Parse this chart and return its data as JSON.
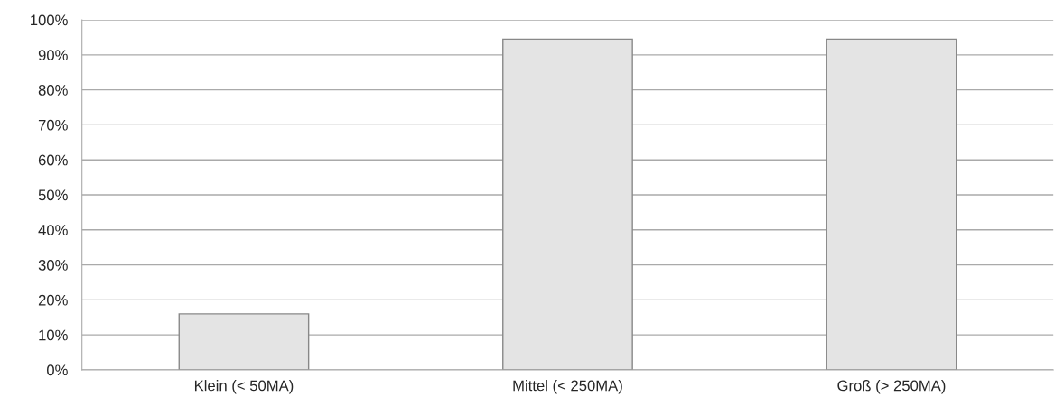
{
  "chart_data": {
    "type": "bar",
    "categories": [
      "Klein (< 50MA)",
      "Mittel (< 250MA)",
      "Groß (> 250MA)"
    ],
    "values": [
      16,
      94.5,
      94.5
    ],
    "color": "#e4e4e4",
    "ylim": [
      0,
      100
    ],
    "yticks": [
      {
        "value": 0,
        "label": "0%"
      },
      {
        "value": 10,
        "label": "10%"
      },
      {
        "value": 20,
        "label": "20%"
      },
      {
        "value": 30,
        "label": "30%"
      },
      {
        "value": 40,
        "label": "40%"
      },
      {
        "value": 50,
        "label": "50%"
      },
      {
        "value": 60,
        "label": "60%"
      },
      {
        "value": 70,
        "label": "70%"
      },
      {
        "value": 80,
        "label": "80%"
      },
      {
        "value": 90,
        "label": "90%"
      },
      {
        "value": 100,
        "label": "100%"
      }
    ],
    "grid": "y"
  }
}
